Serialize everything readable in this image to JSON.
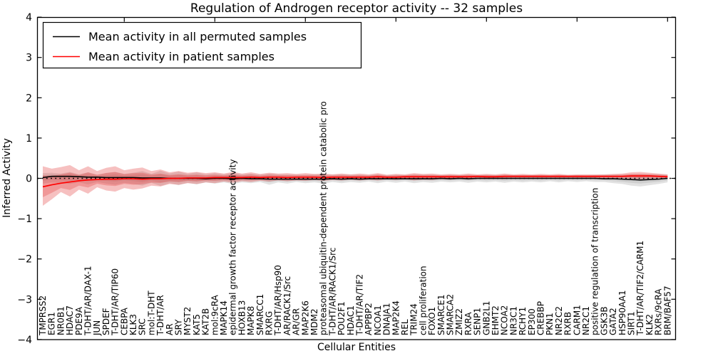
{
  "title": "Regulation of Androgen receptor activity -- 32 samples",
  "axes": {
    "xlabel": "Cellular Entities",
    "ylabel": "Inferred Activity"
  },
  "legend": {
    "items": [
      {
        "label": "Mean activity in all permuted samples",
        "color": "#000000"
      },
      {
        "label": "Mean activity in patient samples",
        "color": "#ff0000"
      }
    ]
  },
  "chart_data": {
    "type": "line",
    "title": "Regulation of Androgen receptor activity -- 32 samples",
    "xlabel": "Cellular Entities",
    "ylabel": "Inferred Activity",
    "ylim": [
      -4,
      4
    ],
    "yticks": [
      4,
      3,
      2,
      1,
      0,
      -1,
      -2,
      -3,
      -4
    ],
    "grid": false,
    "zero_line": "dotted-black",
    "legend_position": "upper-left",
    "top_tick_indices": [
      9,
      19,
      29,
      39,
      49,
      59,
      69
    ],
    "categories": [
      "TMPRSS2",
      "EGR1",
      "NR0B1",
      "HDAC7",
      "PDE9A",
      "T-DHT/AR/DAX-1",
      "JUN",
      "SPDEF",
      "T-DHT/AR/TIP60",
      "CEBPA",
      "KLK3",
      "SRC",
      "mol:T-DHT",
      "T-DHT/AR",
      "AR",
      "SRY",
      "MYST2",
      "KAT5",
      "KAT2B",
      "mol:9cRA",
      "MAPK14",
      "epidermal growth factor receptor activity",
      "HOXB13",
      "MAPK8",
      "SMARCC1",
      "RXRG",
      "T-DHT/AR/Hsp90",
      "AR/RACK1/Src",
      "AR/GR",
      "MAP2K6",
      "MDM2",
      "proteasomal ubiquitin-dependent protein catabolic pro",
      "T-DHT/AR/RACK1/Src",
      "POU2F1",
      "HDAC1",
      "T-DHT/AR/TIF2",
      "APPBP2",
      "NCOA1",
      "DNAJA1",
      "MAP2K4",
      "REL",
      "TRIM24",
      "cell proliferation",
      "FOXO1",
      "SMARCE1",
      "SMARCA2",
      "ZMIZ2",
      "RXRA",
      "SENP1",
      "GNB2L1",
      "EHMT2",
      "NCOA2",
      "NR3C1",
      "RCHY1",
      "EP300",
      "CREBBP",
      "PKN1",
      "NR2C2",
      "RXRB",
      "CARM1",
      "NR2C1",
      "positive regulation of transcription",
      "GSK3B",
      "GATA2",
      "HSP90AA1",
      "SIRT1",
      "T-DHT/AR/TIF2/CARM1",
      "KLK2",
      "RXRs/9cRA",
      "BRM/BAF57"
    ],
    "series": [
      {
        "name": "Mean activity in all permuted samples",
        "color": "#000000",
        "band_fill": "rgba(110,110,110,0.20)",
        "values": [
          0.02,
          0.05,
          0.05,
          0.05,
          0.04,
          0.03,
          0.03,
          0.02,
          0.02,
          0.02,
          0.02,
          0.01,
          0.01,
          0.01,
          0.0,
          0.0,
          0.0,
          0.0,
          -0.01,
          0.0,
          0.0,
          -0.01,
          0.0,
          -0.01,
          -0.01,
          -0.02,
          -0.02,
          -0.02,
          -0.02,
          -0.02,
          -0.02,
          -0.02,
          -0.01,
          -0.02,
          -0.01,
          -0.02,
          -0.01,
          -0.01,
          -0.01,
          -0.01,
          -0.01,
          -0.01,
          -0.01,
          -0.01,
          0.0,
          -0.01,
          0.0,
          -0.01,
          0.0,
          0.0,
          0.0,
          0.0,
          0.0,
          0.0,
          0.0,
          0.0,
          0.0,
          0.0,
          0.0,
          0.0,
          0.0,
          0.0,
          -0.01,
          -0.01,
          -0.02,
          -0.03,
          -0.04,
          -0.03,
          -0.02,
          0.0
        ],
        "band_lower": [
          -0.13,
          -0.1,
          -0.12,
          -0.14,
          -0.1,
          -0.15,
          -0.09,
          -0.13,
          -0.16,
          -0.11,
          -0.14,
          -0.18,
          -0.11,
          -0.19,
          -0.12,
          -0.17,
          -0.11,
          -0.15,
          -0.1,
          -0.13,
          -0.1,
          -0.14,
          -0.1,
          -0.12,
          -0.09,
          -0.16,
          -0.1,
          -0.13,
          -0.09,
          -0.12,
          -0.1,
          -0.13,
          -0.09,
          -0.12,
          -0.09,
          -0.11,
          -0.08,
          -0.12,
          -0.08,
          -0.11,
          -0.08,
          -0.12,
          -0.09,
          -0.11,
          -0.08,
          -0.1,
          -0.08,
          -0.11,
          -0.08,
          -0.1,
          -0.08,
          -0.11,
          -0.08,
          -0.1,
          -0.08,
          -0.1,
          -0.07,
          -0.1,
          -0.07,
          -0.09,
          -0.07,
          -0.09,
          -0.09,
          -0.12,
          -0.14,
          -0.18,
          -0.2,
          -0.17,
          -0.14,
          -0.1
        ],
        "band_upper": [
          0.13,
          0.14,
          0.12,
          0.16,
          0.1,
          0.15,
          0.09,
          0.13,
          0.16,
          0.11,
          0.14,
          0.18,
          0.11,
          0.19,
          0.12,
          0.17,
          0.11,
          0.15,
          0.1,
          0.13,
          0.1,
          0.14,
          0.1,
          0.12,
          0.09,
          0.12,
          0.1,
          0.1,
          0.09,
          0.09,
          0.1,
          0.1,
          0.09,
          0.1,
          0.09,
          0.09,
          0.08,
          0.1,
          0.08,
          0.09,
          0.08,
          0.1,
          0.09,
          0.09,
          0.08,
          0.09,
          0.08,
          0.09,
          0.08,
          0.09,
          0.08,
          0.09,
          0.08,
          0.08,
          0.08,
          0.08,
          0.07,
          0.08,
          0.07,
          0.08,
          0.07,
          0.08,
          0.09,
          0.09,
          0.09,
          0.1,
          0.1,
          0.1,
          0.1,
          0.09
        ]
      },
      {
        "name": "Mean activity in patient samples",
        "color": "#ff0000",
        "band_fill": "rgba(225,45,45,0.30)",
        "values": [
          -0.21,
          -0.16,
          -0.12,
          -0.09,
          -0.06,
          -0.04,
          -0.03,
          -0.02,
          -0.02,
          -0.01,
          -0.01,
          -0.02,
          -0.01,
          -0.01,
          0.0,
          0.0,
          0.01,
          0.01,
          0.01,
          0.02,
          0.02,
          0.02,
          0.02,
          0.03,
          0.02,
          0.03,
          0.03,
          0.02,
          0.03,
          0.03,
          0.03,
          0.02,
          0.03,
          0.03,
          0.03,
          0.03,
          0.03,
          0.04,
          0.03,
          0.03,
          0.04,
          0.04,
          0.04,
          0.04,
          0.04,
          0.04,
          0.04,
          0.04,
          0.05,
          0.04,
          0.04,
          0.05,
          0.05,
          0.05,
          0.05,
          0.05,
          0.05,
          0.05,
          0.05,
          0.05,
          0.05,
          0.05,
          0.05,
          0.05,
          0.05,
          0.06,
          0.06,
          0.06,
          0.05,
          0.04
        ],
        "band_lower": [
          -0.68,
          -0.52,
          -0.34,
          -0.45,
          -0.28,
          -0.38,
          -0.22,
          -0.3,
          -0.33,
          -0.24,
          -0.28,
          -0.25,
          -0.18,
          -0.2,
          -0.14,
          -0.16,
          -0.12,
          -0.14,
          -0.1,
          -0.12,
          -0.08,
          -0.11,
          -0.07,
          -0.09,
          -0.06,
          -0.08,
          -0.05,
          -0.07,
          -0.05,
          -0.06,
          -0.04,
          -0.06,
          -0.04,
          -0.05,
          -0.03,
          -0.05,
          -0.03,
          -0.05,
          -0.02,
          -0.04,
          -0.02,
          -0.05,
          -0.03,
          -0.04,
          -0.02,
          -0.03,
          -0.01,
          -0.03,
          -0.01,
          -0.02,
          -0.01,
          -0.02,
          0.0,
          -0.01,
          0.0,
          -0.01,
          0.0,
          -0.01,
          0.0,
          -0.01,
          0.0,
          -0.01,
          0.0,
          -0.01,
          0.0,
          -0.01,
          -0.02,
          -0.01,
          0.0,
          0.0
        ],
        "band_upper": [
          0.3,
          0.24,
          0.28,
          0.33,
          0.2,
          0.3,
          0.18,
          0.26,
          0.3,
          0.2,
          0.24,
          0.27,
          0.18,
          0.22,
          0.15,
          0.18,
          0.14,
          0.16,
          0.13,
          0.15,
          0.12,
          0.16,
          0.12,
          0.15,
          0.11,
          0.14,
          0.12,
          0.13,
          0.11,
          0.13,
          0.11,
          0.12,
          0.1,
          0.12,
          0.1,
          0.12,
          0.1,
          0.13,
          0.09,
          0.11,
          0.1,
          0.13,
          0.11,
          0.12,
          0.1,
          0.11,
          0.1,
          0.12,
          0.1,
          0.11,
          0.1,
          0.12,
          0.1,
          0.11,
          0.1,
          0.11,
          0.1,
          0.11,
          0.09,
          0.1,
          0.1,
          0.1,
          0.1,
          0.11,
          0.12,
          0.15,
          0.16,
          0.14,
          0.12,
          0.1
        ]
      }
    ]
  }
}
